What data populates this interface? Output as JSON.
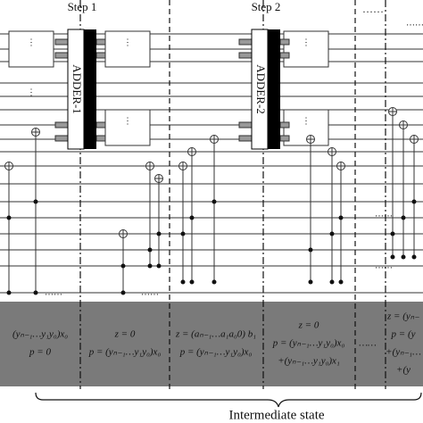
{
  "steps": [
    "Step 1",
    "Step 2"
  ],
  "adders": [
    "ADDER-1",
    "ADDER-2"
  ],
  "vdots": "⋮",
  "hdots": "……",
  "states": [
    [
      "(yₙ₋₁…y₁y₀)x₀",
      "p = 0"
    ],
    [
      "z = 0",
      "p = (yₙ₋₁…y₁y₀)x₀"
    ],
    [
      "z = (aₙ₋₁…a₁a₀0) b₁",
      "p = (yₙ₋₁…y₁y₀)x₀"
    ],
    [
      "z = 0",
      "p = (yₙ₋₁…y₁y₀)x₀",
      "+(yₙ₋₁…y₁y₀)x₁"
    ],
    [
      "……"
    ],
    [
      "z = (yₙ₋",
      "p = (y",
      "+(yₙ₋₁…",
      "+(y"
    ]
  ],
  "footer": "Intermediate state"
}
